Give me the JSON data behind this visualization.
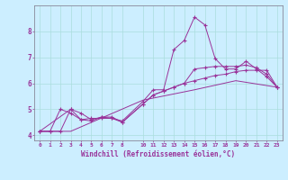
{
  "xlabel": "Windchill (Refroidissement éolien,°C)",
  "bg_color": "#cceeff",
  "line_color": "#993399",
  "xlim": [
    -0.5,
    23.5
  ],
  "ylim": [
    3.8,
    9.0
  ],
  "xticks": [
    0,
    1,
    2,
    3,
    4,
    5,
    6,
    7,
    8,
    10,
    11,
    12,
    13,
    14,
    15,
    16,
    17,
    18,
    19,
    20,
    21,
    22,
    23
  ],
  "yticks": [
    4,
    5,
    6,
    7,
    8
  ],
  "grid_color": "#aadddd",
  "series1": [
    [
      0,
      4.15
    ],
    [
      1,
      4.15
    ],
    [
      2,
      5.0
    ],
    [
      3,
      4.85
    ],
    [
      4,
      4.6
    ],
    [
      5,
      4.65
    ],
    [
      6,
      4.65
    ],
    [
      7,
      4.65
    ],
    [
      8,
      4.55
    ],
    [
      10,
      5.3
    ],
    [
      11,
      5.75
    ],
    [
      12,
      5.75
    ],
    [
      13,
      7.3
    ],
    [
      14,
      7.65
    ],
    [
      15,
      8.55
    ],
    [
      16,
      8.25
    ],
    [
      17,
      6.95
    ],
    [
      18,
      6.55
    ],
    [
      19,
      6.55
    ],
    [
      20,
      6.85
    ],
    [
      21,
      6.55
    ],
    [
      22,
      6.25
    ],
    [
      23,
      5.85
    ]
  ],
  "series2": [
    [
      0,
      4.15
    ],
    [
      3,
      5.0
    ],
    [
      4,
      4.85
    ],
    [
      5,
      4.6
    ],
    [
      6,
      4.7
    ],
    [
      7,
      4.65
    ],
    [
      8,
      4.5
    ],
    [
      10,
      5.2
    ],
    [
      11,
      5.55
    ],
    [
      12,
      5.7
    ],
    [
      13,
      5.85
    ],
    [
      14,
      6.0
    ],
    [
      15,
      6.55
    ],
    [
      16,
      6.6
    ],
    [
      17,
      6.65
    ],
    [
      18,
      6.65
    ],
    [
      19,
      6.65
    ],
    [
      20,
      6.7
    ],
    [
      21,
      6.6
    ],
    [
      22,
      6.35
    ],
    [
      23,
      5.85
    ]
  ],
  "series3": [
    [
      0,
      4.15
    ],
    [
      1,
      4.15
    ],
    [
      2,
      4.15
    ],
    [
      3,
      5.0
    ],
    [
      4,
      4.6
    ],
    [
      5,
      4.55
    ],
    [
      6,
      4.7
    ],
    [
      7,
      4.7
    ],
    [
      8,
      4.5
    ],
    [
      10,
      5.2
    ],
    [
      11,
      5.55
    ],
    [
      12,
      5.7
    ],
    [
      13,
      5.85
    ],
    [
      14,
      6.0
    ],
    [
      15,
      6.1
    ],
    [
      16,
      6.2
    ],
    [
      17,
      6.3
    ],
    [
      18,
      6.35
    ],
    [
      19,
      6.45
    ],
    [
      20,
      6.5
    ],
    [
      21,
      6.5
    ],
    [
      22,
      6.5
    ],
    [
      23,
      5.85
    ]
  ],
  "series4": [
    [
      0,
      4.15
    ],
    [
      1,
      4.15
    ],
    [
      2,
      4.15
    ],
    [
      3,
      4.15
    ],
    [
      10,
      5.35
    ],
    [
      15,
      5.75
    ],
    [
      19,
      6.1
    ],
    [
      23,
      5.85
    ]
  ]
}
